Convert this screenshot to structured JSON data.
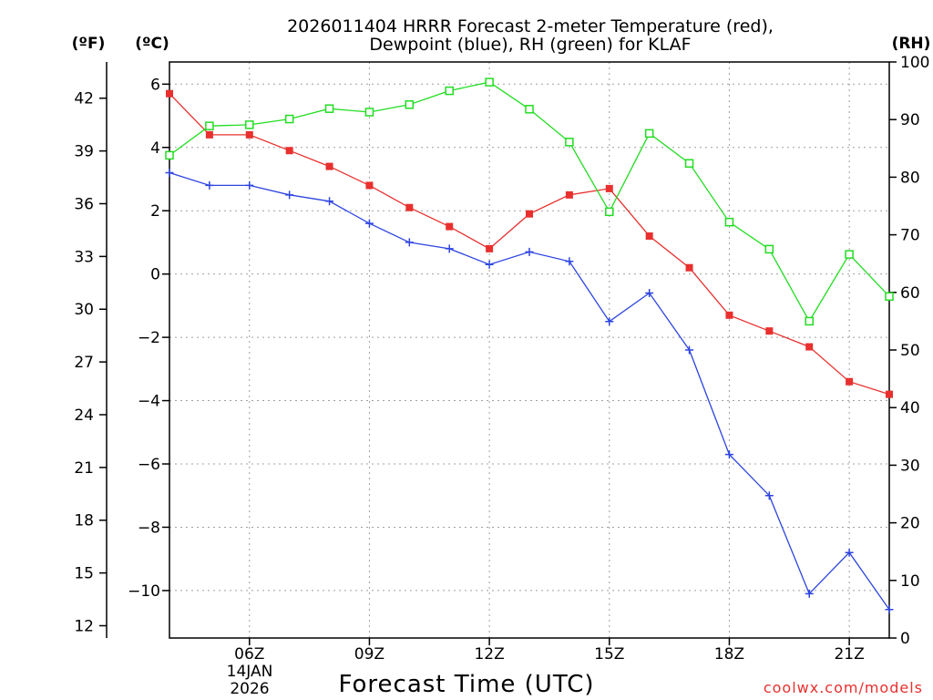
{
  "chart_data": {
    "type": "line",
    "title": "2026011404 HRRR Forecast 2-meter Temperature (red),",
    "subtitle": "Dewpoint (blue), RH (green) for KLAF",
    "xlabel": "Forecast Time (UTC)",
    "credit": "coolwx.com/models",
    "units": {
      "fahrenheit": "(ºF)",
      "celsius": "(ºC)",
      "rh": "(RH)"
    },
    "date_label": [
      "14JAN",
      "2026"
    ],
    "x_hours": [
      4,
      5,
      6,
      7,
      8,
      9,
      10,
      11,
      12,
      13,
      14,
      15,
      16,
      17,
      18,
      19,
      20,
      21,
      22
    ],
    "xlim": [
      4,
      22
    ],
    "x_ticks": [
      {
        "hour": 6,
        "label": "06Z"
      },
      {
        "hour": 9,
        "label": "09Z"
      },
      {
        "hour": 12,
        "label": "12Z"
      },
      {
        "hour": 15,
        "label": "15Z"
      },
      {
        "hour": 18,
        "label": "18Z"
      },
      {
        "hour": 21,
        "label": "21Z"
      }
    ],
    "y_celsius_lim": [
      -11.5,
      6.7
    ],
    "y_celsius_ticks": [
      "6",
      "4",
      "2",
      "0",
      "−2",
      "−4",
      "−6",
      "−8",
      "−10"
    ],
    "y_celsius_tick_values": [
      6,
      4,
      2,
      0,
      -2,
      -4,
      -6,
      -8,
      -10
    ],
    "y_fahrenheit_ticks": [
      "42",
      "39",
      "36",
      "33",
      "30",
      "27",
      "24",
      "21",
      "18",
      "15",
      "12"
    ],
    "y_fahrenheit_tick_values": [
      42,
      39,
      36,
      33,
      30,
      27,
      24,
      21,
      18,
      15,
      12
    ],
    "y_rh_lim": [
      0,
      100
    ],
    "y_rh_ticks": [
      "100",
      "90",
      "80",
      "70",
      "60",
      "50",
      "40",
      "30",
      "20",
      "10",
      "0"
    ],
    "y_rh_tick_values": [
      100,
      90,
      80,
      70,
      60,
      50,
      40,
      30,
      20,
      10,
      0
    ],
    "series": [
      {
        "name": "2-meter Temperature",
        "axis": "celsius",
        "color": "#e8302e",
        "marker": "filled-square",
        "values": [
          5.7,
          4.4,
          4.4,
          3.9,
          3.4,
          2.8,
          2.1,
          1.5,
          0.8,
          1.9,
          2.5,
          2.7,
          1.2,
          0.2,
          -1.3,
          -1.8,
          -2.3,
          -3.4,
          -3.8
        ]
      },
      {
        "name": "Dewpoint",
        "axis": "celsius",
        "color": "#2e45e0",
        "marker": "plus",
        "values": [
          3.2,
          2.8,
          2.8,
          2.5,
          2.3,
          1.6,
          1.0,
          0.8,
          0.3,
          0.7,
          0.4,
          -1.5,
          -0.6,
          -2.4,
          -5.7,
          -7.0,
          -10.1,
          -8.8,
          -10.6
        ]
      },
      {
        "name": "RH",
        "axis": "rh",
        "color": "#22dd22",
        "marker": "open-square",
        "values": [
          83.8,
          88.9,
          89.1,
          90.1,
          91.9,
          91.3,
          92.6,
          95.0,
          96.5,
          91.8,
          86.1,
          74.0,
          87.6,
          82.4,
          72.2,
          67.5,
          55.0,
          66.6,
          59.3
        ]
      }
    ]
  }
}
